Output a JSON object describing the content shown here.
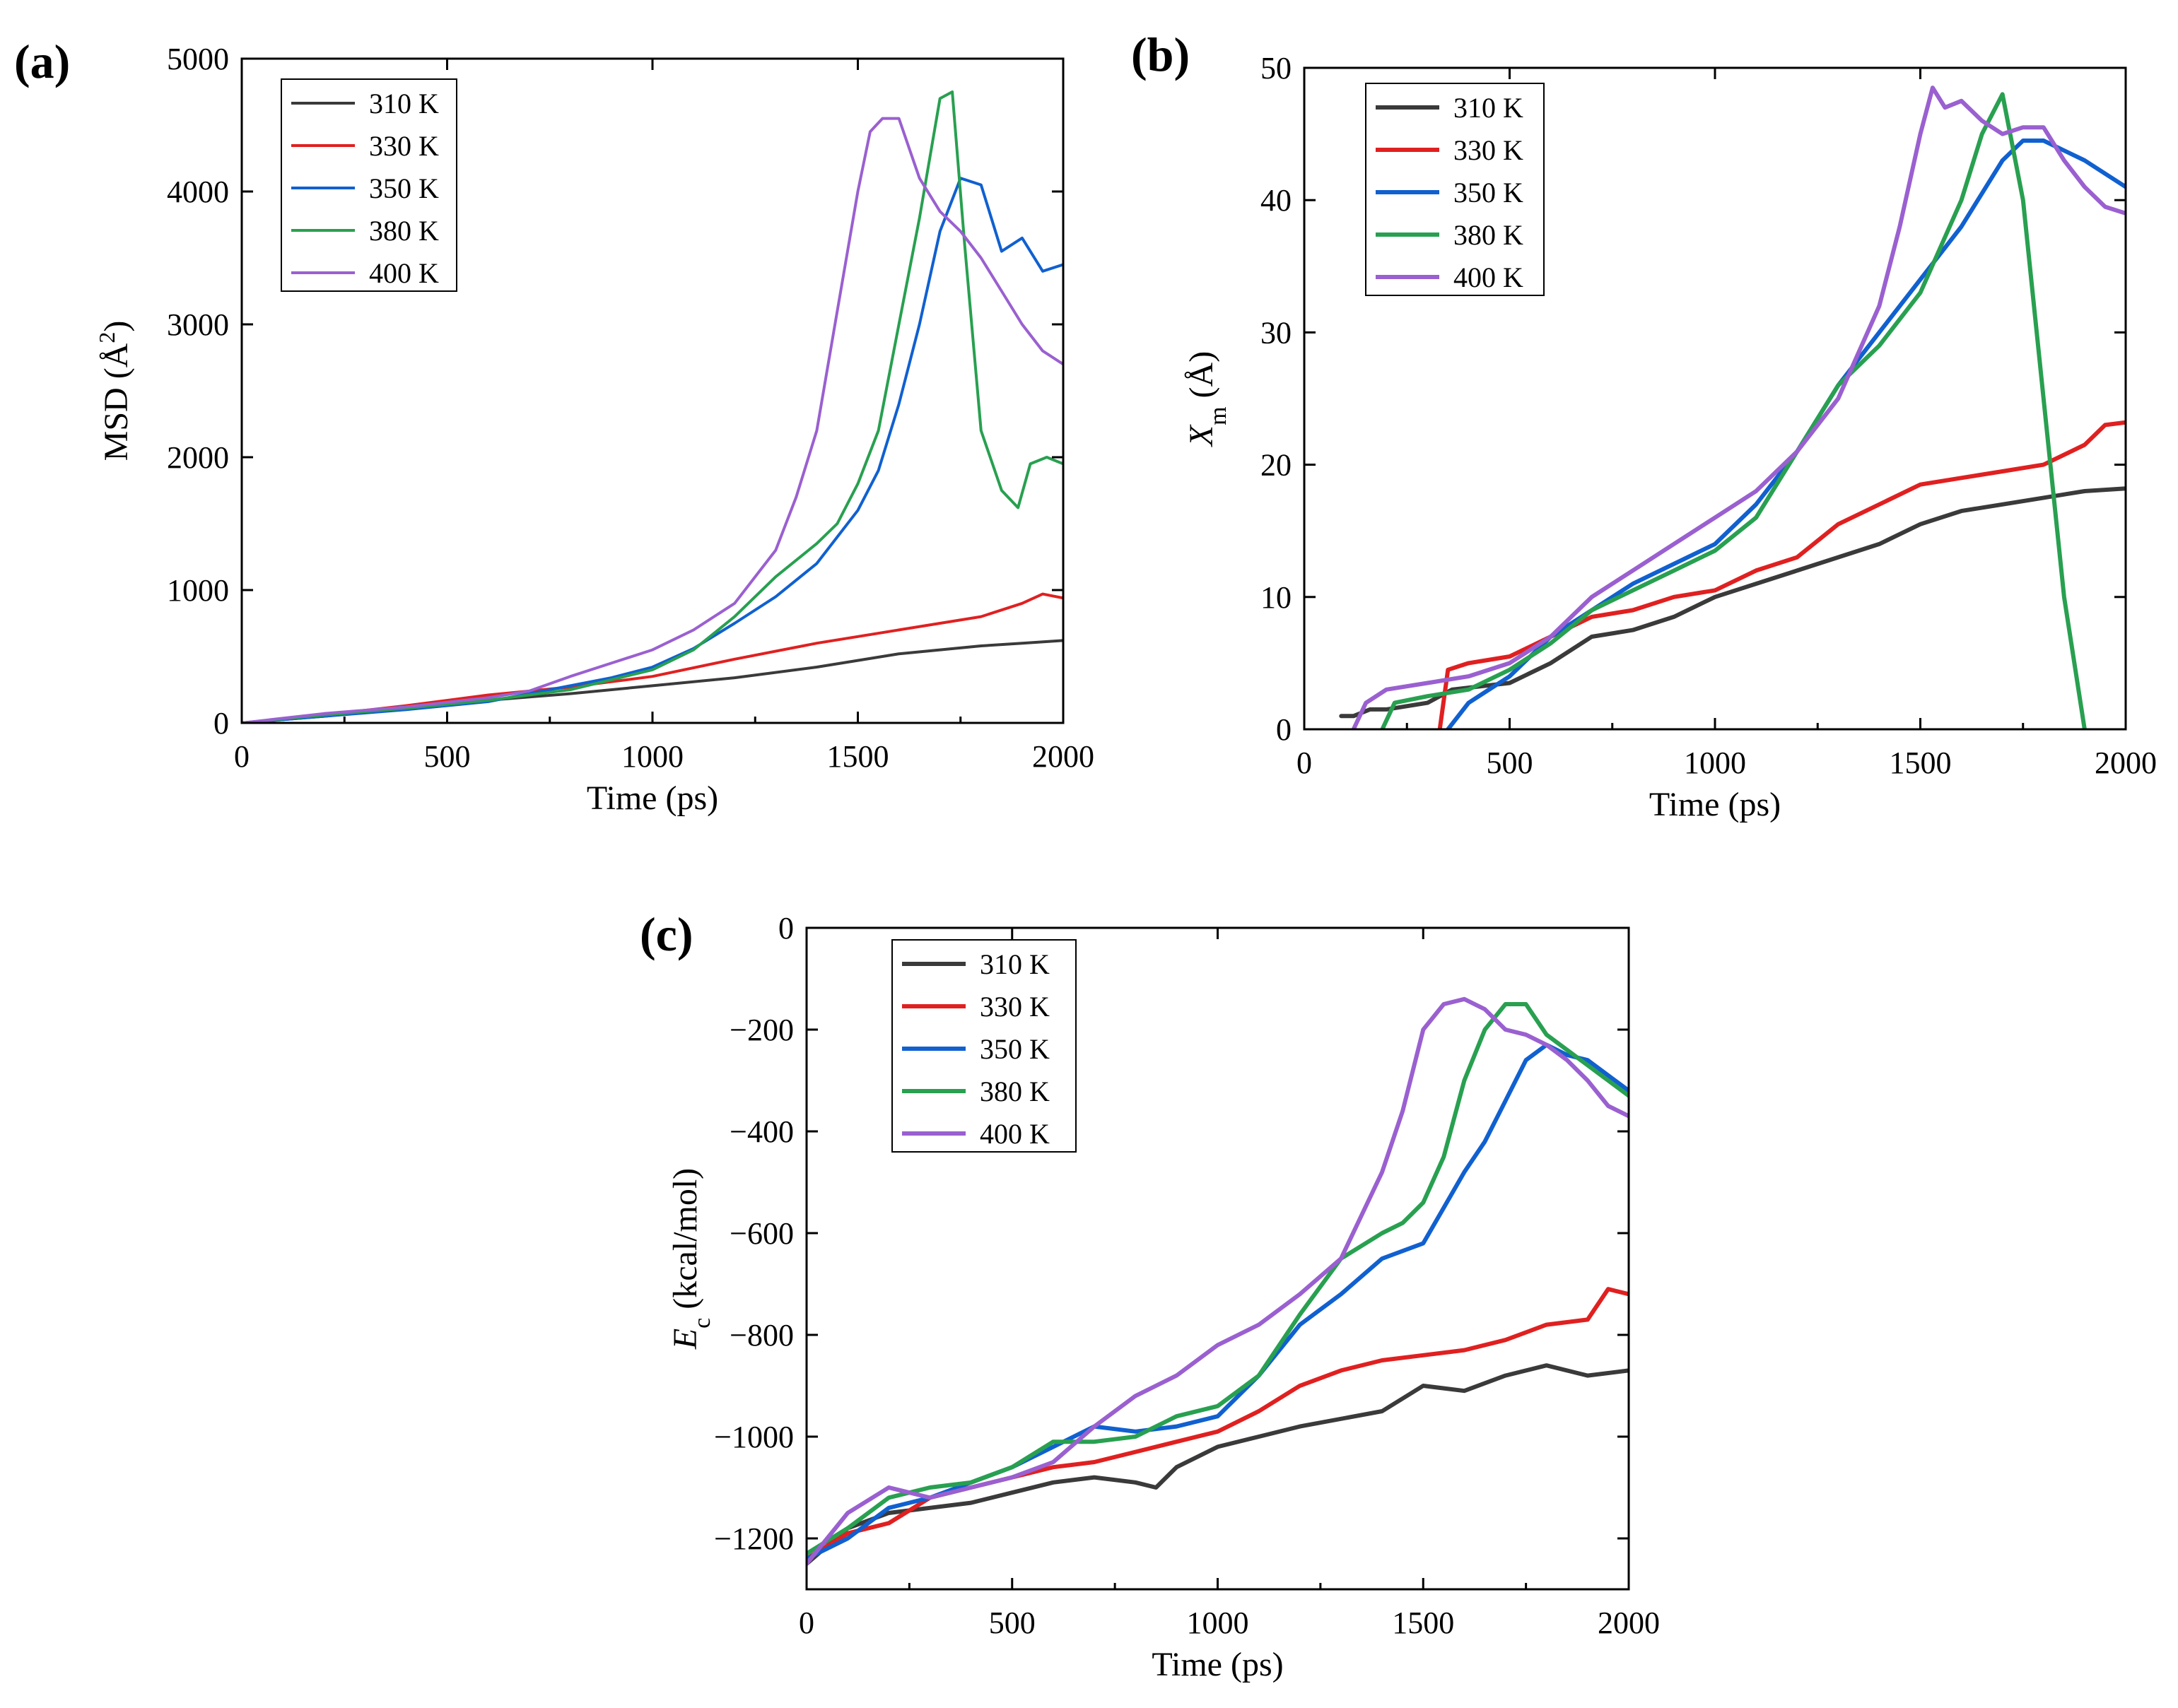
{
  "chart_data": [
    {
      "type": "line",
      "panel_label": "(a)",
      "title": "",
      "xlabel": "Time (ps)",
      "ylabel": "MSD (Å²)",
      "ylabel_main": "MSD",
      "ylabel_unit_open": "(Å",
      "ylabel_unit_sup": "2",
      "ylabel_unit_close": ")",
      "xlim": [
        0,
        2000
      ],
      "ylim": [
        0,
        5000
      ],
      "xticks": [
        0,
        500,
        1000,
        1500,
        2000
      ],
      "yticks": [
        0,
        1000,
        2000,
        3000,
        4000,
        5000
      ],
      "legend_position": "top-left",
      "series": [
        {
          "name": "310 K",
          "color": "#3a3a3a",
          "x": [
            0,
            200,
            400,
            600,
            800,
            1000,
            1200,
            1400,
            1500,
            1600,
            1700,
            1800,
            1900,
            2000
          ],
          "y": [
            0,
            50,
            110,
            170,
            220,
            280,
            340,
            420,
            470,
            520,
            550,
            580,
            600,
            620
          ]
        },
        {
          "name": "330 K",
          "color": "#e02020",
          "x": [
            0,
            200,
            400,
            600,
            800,
            1000,
            1200,
            1400,
            1500,
            1600,
            1700,
            1800,
            1900,
            1950,
            2000
          ],
          "y": [
            0,
            60,
            130,
            210,
            270,
            350,
            480,
            600,
            650,
            700,
            750,
            800,
            900,
            970,
            940
          ]
        },
        {
          "name": "350 K",
          "color": "#1060d0",
          "x": [
            0,
            200,
            400,
            600,
            700,
            800,
            900,
            1000,
            1100,
            1200,
            1300,
            1400,
            1500,
            1550,
            1600,
            1650,
            1700,
            1750,
            1800,
            1850,
            1900,
            1950,
            2000
          ],
          "y": [
            0,
            50,
            100,
            160,
            220,
            280,
            340,
            420,
            560,
            750,
            950,
            1200,
            1600,
            1900,
            2400,
            3000,
            3700,
            4100,
            4050,
            3550,
            3650,
            3400,
            3450
          ]
        },
        {
          "name": "380 K",
          "color": "#28a050",
          "x": [
            0,
            200,
            400,
            600,
            800,
            1000,
            1100,
            1200,
            1300,
            1400,
            1450,
            1500,
            1550,
            1600,
            1650,
            1700,
            1730,
            1760,
            1800,
            1850,
            1890,
            1920,
            1960,
            2000
          ],
          "y": [
            0,
            60,
            110,
            170,
            250,
            400,
            550,
            800,
            1100,
            1350,
            1500,
            1800,
            2200,
            3000,
            3800,
            4700,
            4750,
            3600,
            2200,
            1750,
            1620,
            1950,
            2000,
            1950
          ]
        },
        {
          "name": "400 K",
          "color": "#9a60d0",
          "x": [
            0,
            200,
            400,
            600,
            700,
            800,
            900,
            1000,
            1100,
            1200,
            1300,
            1350,
            1400,
            1450,
            1500,
            1530,
            1560,
            1600,
            1650,
            1700,
            1750,
            1800,
            1850,
            1900,
            1950,
            2000
          ],
          "y": [
            0,
            70,
            120,
            190,
            240,
            350,
            450,
            550,
            700,
            900,
            1300,
            1700,
            2200,
            3100,
            4000,
            4450,
            4550,
            4550,
            4100,
            3850,
            3700,
            3500,
            3250,
            3000,
            2800,
            2700
          ]
        }
      ]
    },
    {
      "type": "line",
      "panel_label": "(b)",
      "title": "",
      "xlabel": "Time (ps)",
      "ylabel": "Xm (Å)",
      "ylabel_main": "X",
      "ylabel_sub": "m",
      "ylabel_unit": " (Å)",
      "xlim": [
        0,
        2000
      ],
      "ylim": [
        0,
        50
      ],
      "xticks": [
        0,
        500,
        1000,
        1500,
        2000
      ],
      "yticks": [
        0,
        10,
        20,
        30,
        40,
        50
      ],
      "legend_position": "top-left",
      "series": [
        {
          "name": "310 K",
          "color": "#3a3a3a",
          "x": [
            90,
            120,
            160,
            200,
            300,
            360,
            500,
            600,
            700,
            800,
            900,
            1000,
            1200,
            1400,
            1500,
            1600,
            1700,
            1800,
            1900,
            2000
          ],
          "y": [
            1,
            1,
            1.5,
            1.5,
            2,
            3,
            3.5,
            5,
            7,
            7.5,
            8.5,
            10,
            12,
            14,
            15.5,
            16.5,
            17,
            17.5,
            18,
            18.2
          ]
        },
        {
          "name": "330 K",
          "color": "#e02020",
          "x": [
            330,
            350,
            400,
            500,
            600,
            700,
            800,
            900,
            1000,
            1100,
            1200,
            1300,
            1400,
            1500,
            1600,
            1700,
            1800,
            1900,
            1950,
            2000
          ],
          "y": [
            0,
            4.5,
            5,
            5.5,
            7,
            8.5,
            9,
            10,
            10.5,
            12,
            13,
            15.5,
            17,
            18.5,
            19,
            19.5,
            20,
            21.5,
            23,
            23.2
          ]
        },
        {
          "name": "350 K",
          "color": "#1060d0",
          "x": [
            350,
            400,
            450,
            500,
            600,
            700,
            800,
            900,
            1000,
            1100,
            1200,
            1300,
            1400,
            1500,
            1600,
            1700,
            1750,
            1800,
            1900,
            2000
          ],
          "y": [
            0,
            2,
            3,
            4,
            7,
            9,
            11,
            12.5,
            14,
            17,
            21,
            26,
            30,
            34,
            38,
            43,
            44.5,
            44.5,
            43,
            41
          ]
        },
        {
          "name": "380 K",
          "color": "#28a050",
          "x": [
            190,
            220,
            300,
            400,
            500,
            600,
            700,
            800,
            900,
            1000,
            1100,
            1200,
            1300,
            1400,
            1500,
            1600,
            1650,
            1700,
            1750,
            1800,
            1850,
            1900
          ],
          "y": [
            0,
            2,
            2.5,
            3,
            4.5,
            6.5,
            9,
            10.5,
            12,
            13.5,
            16,
            21,
            26,
            29,
            33,
            40,
            45,
            48,
            40,
            25,
            10,
            0
          ]
        },
        {
          "name": "400 K",
          "color": "#9a60d0",
          "x": [
            120,
            150,
            200,
            300,
            400,
            500,
            600,
            700,
            800,
            900,
            1000,
            1100,
            1200,
            1300,
            1400,
            1450,
            1500,
            1530,
            1560,
            1600,
            1650,
            1700,
            1750,
            1800,
            1850,
            1900,
            1950,
            2000
          ],
          "y": [
            0,
            2,
            3,
            3.5,
            4,
            5,
            7,
            10,
            12,
            14,
            16,
            18,
            21,
            25,
            32,
            38,
            45,
            48.5,
            47,
            47.5,
            46,
            45,
            45.5,
            45.5,
            43,
            41,
            39.5,
            39
          ]
        }
      ]
    },
    {
      "type": "line",
      "panel_label": "(c)",
      "title": "",
      "xlabel": "Time (ps)",
      "ylabel": "Ec (kcal/mol)",
      "ylabel_main": "E",
      "ylabel_sub": "c",
      "ylabel_unit": " (kcal/mol)",
      "xlim": [
        0,
        2000
      ],
      "ylim": [
        -1300,
        0
      ],
      "xticks": [
        0,
        500,
        1000,
        1500,
        2000
      ],
      "yticks": [
        0,
        -200,
        -400,
        -600,
        -800,
        -1000,
        -1200
      ],
      "ytick_labels": [
        "0",
        "-200",
        "-400",
        "-600",
        "-800",
        "-1000",
        "-1200"
      ],
      "legend_position": "top-left",
      "series": [
        {
          "name": "310 K",
          "color": "#3a3a3a",
          "x": [
            0,
            100,
            200,
            300,
            400,
            500,
            600,
            700,
            800,
            850,
            900,
            1000,
            1200,
            1400,
            1500,
            1600,
            1700,
            1800,
            1900,
            2000
          ],
          "y": [
            -1250,
            -1180,
            -1150,
            -1140,
            -1130,
            -1110,
            -1090,
            -1080,
            -1090,
            -1100,
            -1060,
            -1020,
            -980,
            -950,
            -900,
            -910,
            -880,
            -860,
            -880,
            -870
          ]
        },
        {
          "name": "330 K",
          "color": "#e02020",
          "x": [
            0,
            100,
            200,
            300,
            400,
            500,
            600,
            700,
            800,
            900,
            1000,
            1100,
            1200,
            1300,
            1400,
            1500,
            1600,
            1700,
            1800,
            1900,
            1950,
            2000
          ],
          "y": [
            -1240,
            -1190,
            -1170,
            -1120,
            -1100,
            -1080,
            -1060,
            -1050,
            -1030,
            -1010,
            -990,
            -950,
            -900,
            -870,
            -850,
            -840,
            -830,
            -810,
            -780,
            -770,
            -710,
            -720
          ]
        },
        {
          "name": "350 K",
          "color": "#1060d0",
          "x": [
            0,
            100,
            200,
            300,
            400,
            500,
            600,
            700,
            800,
            900,
            1000,
            1100,
            1200,
            1300,
            1400,
            1500,
            1600,
            1650,
            1700,
            1750,
            1800,
            1850,
            1900,
            1950,
            2000
          ],
          "y": [
            -1240,
            -1200,
            -1140,
            -1120,
            -1090,
            -1060,
            -1020,
            -980,
            -990,
            -980,
            -960,
            -880,
            -780,
            -720,
            -650,
            -620,
            -480,
            -420,
            -340,
            -260,
            -230,
            -250,
            -260,
            -290,
            -320
          ]
        },
        {
          "name": "380 K",
          "color": "#28a050",
          "x": [
            0,
            100,
            200,
            300,
            400,
            500,
            600,
            700,
            800,
            900,
            1000,
            1100,
            1200,
            1300,
            1400,
            1450,
            1500,
            1550,
            1600,
            1650,
            1700,
            1750,
            1800,
            1850,
            1900,
            1950,
            2000
          ],
          "y": [
            -1230,
            -1180,
            -1120,
            -1100,
            -1090,
            -1060,
            -1010,
            -1010,
            -1000,
            -960,
            -940,
            -880,
            -760,
            -650,
            -600,
            -580,
            -540,
            -450,
            -300,
            -200,
            -150,
            -150,
            -210,
            -240,
            -270,
            -300,
            -330
          ]
        },
        {
          "name": "400 K",
          "color": "#9a60d0",
          "x": [
            0,
            100,
            200,
            300,
            400,
            500,
            600,
            700,
            800,
            900,
            1000,
            1100,
            1200,
            1300,
            1400,
            1450,
            1500,
            1550,
            1600,
            1650,
            1700,
            1750,
            1800,
            1850,
            1900,
            1950,
            2000
          ],
          "y": [
            -1250,
            -1150,
            -1100,
            -1120,
            -1100,
            -1080,
            -1050,
            -980,
            -920,
            -880,
            -820,
            -780,
            -720,
            -650,
            -480,
            -360,
            -200,
            -150,
            -140,
            -160,
            -200,
            -210,
            -230,
            -260,
            -300,
            -350,
            -370
          ]
        }
      ]
    }
  ]
}
